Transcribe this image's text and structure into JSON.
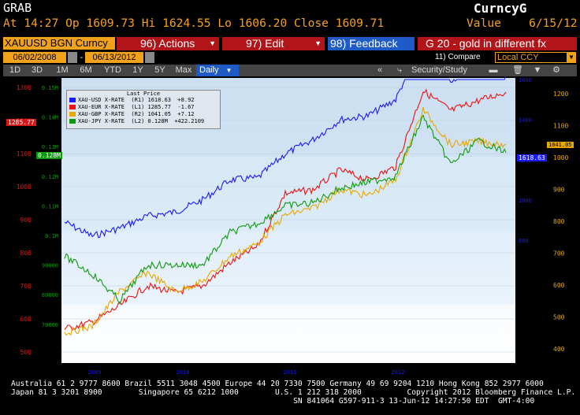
{
  "header": {
    "title": "GRAB",
    "product": "CurncyG",
    "quote_line": "At 14:27 Op 1609.73 Hi 1624.55 Lo 1606.20 Close 1609.71",
    "value_line": "Value    6/15/12"
  },
  "toolbar": {
    "ticker": "XAUUSD BGN Curncy",
    "actions": "96) Actions",
    "edit": "97) Edit",
    "feedback": "98)  Feedback",
    "chart_title": "G 20 - gold in different fx",
    "start_date": "06/02/2008",
    "end_date": "06/13/2012",
    "compare": "11) Compare",
    "currency": "Local CCY"
  },
  "tabs": {
    "periods": [
      "1D",
      "3D",
      "1M",
      "6M",
      "YTD",
      "1Y",
      "5Y",
      "Max"
    ],
    "frequency": "Daily",
    "security": "Security/Study"
  },
  "legend": {
    "title": "Last Price",
    "rows": [
      {
        "text": "XAU-USD X-RATE  (R1) 1618.63  +8.92",
        "color": "#1a1aff"
      },
      {
        "text": "XAU-EUR X-RATE  (L1) 1285.77  -1.67",
        "color": "#ee1111"
      },
      {
        "text": "XAU-GBP X-RATE  (R2) 1041.05  +7.12",
        "color": "#e8a800"
      },
      {
        "text": "XAU-JPY X-RATE  (L2) 0.128M  +422.2109",
        "color": "#0c9a0c"
      }
    ]
  },
  "axis_labels": {
    "left_outer": [
      "1300",
      "1200",
      "1100",
      "1000",
      "900",
      "800",
      "700",
      "600",
      "500"
    ],
    "left_inner": [
      "0.15M",
      "0.14M",
      "0.13M",
      "0.12M",
      "0.11M",
      "0.1M",
      "90000",
      "80000",
      "70000"
    ],
    "right_inner": [
      "1600",
      "1400",
      "1200",
      "1000",
      "800"
    ],
    "right_outer": [
      "1200",
      "1100",
      "1000",
      "900",
      "800",
      "700",
      "600",
      "500",
      "400"
    ],
    "years": [
      "2009",
      "2010",
      "2011",
      "2012"
    ],
    "last_eur": "1285.77",
    "last_jpy": "0.128M",
    "last_gbp": "1041.05",
    "last_usd": "1618.63"
  },
  "footer": {
    "line1": "Australia 61 2 9777 8600 Brazil 5511 3048 4500 Europe 44 20 7330 7500 Germany 49 69 9204 1210 Hong Kong 852 2977 6000",
    "line2": "Japan 81 3 3201 8900        Singapore 65 6212 1000        U.S. 1 212 318 2000          Copyright 2012 Bloomberg Finance L.P.",
    "line3": "                                                              SN 841064 G597-911-3 13-Jun-12 14:27:50 EDT  GMT-4:00"
  },
  "colors": {
    "usd": "#1a1aff",
    "eur": "#ee1111",
    "gbp": "#e8a800",
    "jpy": "#0c9a0c",
    "bloomberg_orange": "#f7a11a"
  },
  "chart_data": {
    "type": "line",
    "x": [
      "2008-06",
      "2008-09",
      "2008-12",
      "2009-03",
      "2009-06",
      "2009-09",
      "2009-12",
      "2010-03",
      "2010-06",
      "2010-09",
      "2010-12",
      "2011-03",
      "2011-06",
      "2011-09",
      "2011-12",
      "2012-03",
      "2012-06"
    ],
    "series": [
      {
        "name": "XAU-USD X-RATE",
        "axis": "R1",
        "values": [
          890,
          820,
          860,
          920,
          940,
          1000,
          1100,
          1110,
          1230,
          1300,
          1400,
          1420,
          1500,
          1800,
          1600,
          1650,
          1618
        ]
      },
      {
        "name": "XAU-EUR X-RATE",
        "axis": "L1",
        "values": [
          570,
          590,
          640,
          700,
          680,
          700,
          770,
          820,
          980,
          990,
          1050,
          1020,
          1060,
          1290,
          1230,
          1260,
          1286
        ]
      },
      {
        "name": "XAU-GBP X-RATE",
        "axis": "R2",
        "values": [
          450,
          470,
          580,
          640,
          580,
          610,
          690,
          730,
          820,
          840,
          900,
          880,
          930,
          1150,
          1040,
          1050,
          1041
        ]
      },
      {
        "name": "XAU-JPY X-RATE",
        "axis": "L2",
        "values": [
          93000,
          87000,
          78000,
          90000,
          90000,
          90000,
          101000,
          104000,
          110000,
          111000,
          116000,
          118000,
          120000,
          140000,
          124000,
          132000,
          128000
        ]
      }
    ]
  }
}
